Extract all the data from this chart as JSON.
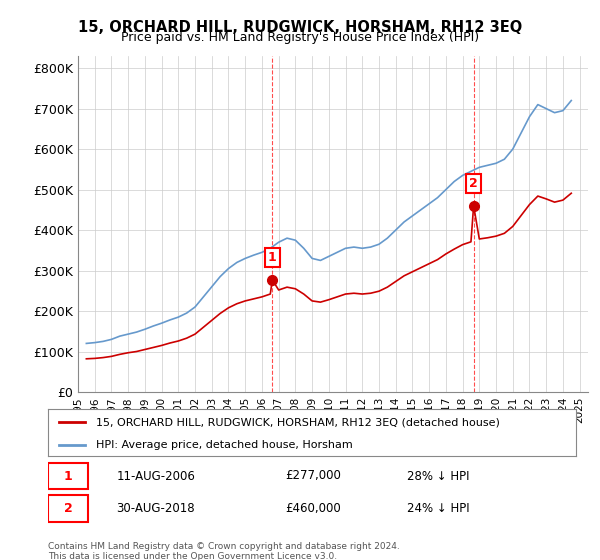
{
  "title": "15, ORCHARD HILL, RUDGWICK, HORSHAM, RH12 3EQ",
  "subtitle": "Price paid vs. HM Land Registry's House Price Index (HPI)",
  "ylabel_ticks": [
    "£0",
    "£100K",
    "£200K",
    "£300K",
    "£400K",
    "£500K",
    "£600K",
    "£700K",
    "£800K"
  ],
  "ytick_vals": [
    0,
    100000,
    200000,
    300000,
    400000,
    500000,
    600000,
    700000,
    800000
  ],
  "ylim": [
    0,
    830000
  ],
  "xlim_start": 1995.0,
  "xlim_end": 2025.5,
  "transaction1": {
    "year": 2006.62,
    "price": 277000,
    "label": "1",
    "date": "11-AUG-2006",
    "pct": "28% ↓ HPI"
  },
  "transaction2": {
    "year": 2018.66,
    "price": 460000,
    "label": "2",
    "date": "30-AUG-2018",
    "pct": "24% ↓ HPI"
  },
  "legend_property": "15, ORCHARD HILL, RUDGWICK, HORSHAM, RH12 3EQ (detached house)",
  "legend_hpi": "HPI: Average price, detached house, Horsham",
  "footer": "Contains HM Land Registry data © Crown copyright and database right 2024.\nThis data is licensed under the Open Government Licence v3.0.",
  "property_color": "#cc0000",
  "hpi_color": "#6699cc",
  "background_color": "#ffffff",
  "grid_color": "#cccccc",
  "hpi_data": {
    "years": [
      1995.5,
      1996.0,
      1996.5,
      1997.0,
      1997.5,
      1998.0,
      1998.5,
      1999.0,
      1999.5,
      2000.0,
      2000.5,
      2001.0,
      2001.5,
      2002.0,
      2002.5,
      2003.0,
      2003.5,
      2004.0,
      2004.5,
      2005.0,
      2005.5,
      2006.0,
      2006.5,
      2007.0,
      2007.5,
      2008.0,
      2008.5,
      2009.0,
      2009.5,
      2010.0,
      2010.5,
      2011.0,
      2011.5,
      2012.0,
      2012.5,
      2013.0,
      2013.5,
      2014.0,
      2014.5,
      2015.0,
      2015.5,
      2016.0,
      2016.5,
      2017.0,
      2017.5,
      2018.0,
      2018.5,
      2019.0,
      2019.5,
      2020.0,
      2020.5,
      2021.0,
      2021.5,
      2022.0,
      2022.5,
      2023.0,
      2023.5,
      2024.0,
      2024.5
    ],
    "values": [
      120000,
      122000,
      125000,
      130000,
      138000,
      143000,
      148000,
      155000,
      163000,
      170000,
      178000,
      185000,
      195000,
      210000,
      235000,
      260000,
      285000,
      305000,
      320000,
      330000,
      338000,
      345000,
      355000,
      370000,
      380000,
      375000,
      355000,
      330000,
      325000,
      335000,
      345000,
      355000,
      358000,
      355000,
      358000,
      365000,
      380000,
      400000,
      420000,
      435000,
      450000,
      465000,
      480000,
      500000,
      520000,
      535000,
      545000,
      555000,
      560000,
      565000,
      575000,
      600000,
      640000,
      680000,
      710000,
      700000,
      690000,
      695000,
      720000
    ]
  },
  "property_data": {
    "years": [
      1995.5,
      1996.0,
      1996.5,
      1997.0,
      1997.5,
      1998.0,
      1998.5,
      1999.0,
      1999.5,
      2000.0,
      2000.5,
      2001.0,
      2001.5,
      2002.0,
      2002.5,
      2003.0,
      2003.5,
      2004.0,
      2004.5,
      2005.0,
      2005.5,
      2006.0,
      2006.5,
      2006.62,
      2007.0,
      2007.5,
      2008.0,
      2008.5,
      2009.0,
      2009.5,
      2010.0,
      2010.5,
      2011.0,
      2011.5,
      2012.0,
      2012.5,
      2013.0,
      2013.5,
      2014.0,
      2014.5,
      2015.0,
      2015.5,
      2016.0,
      2016.5,
      2017.0,
      2017.5,
      2018.0,
      2018.5,
      2018.66,
      2019.0,
      2019.5,
      2020.0,
      2020.5,
      2021.0,
      2021.5,
      2022.0,
      2022.5,
      2023.0,
      2023.5,
      2024.0,
      2024.5
    ],
    "values": [
      82000,
      83000,
      85000,
      88000,
      93000,
      97000,
      100000,
      105000,
      110000,
      115000,
      121000,
      126000,
      133000,
      143000,
      160000,
      177000,
      194000,
      208000,
      218000,
      225000,
      230000,
      235000,
      242000,
      277000,
      252000,
      259000,
      255000,
      242000,
      225000,
      222000,
      228000,
      235000,
      242000,
      244000,
      242000,
      244000,
      249000,
      259000,
      273000,
      287000,
      297000,
      307000,
      317000,
      327000,
      341000,
      353000,
      364000,
      371000,
      460000,
      378000,
      381000,
      385000,
      392000,
      409000,
      436000,
      463000,
      484000,
      477000,
      469000,
      474000,
      491000
    ]
  }
}
